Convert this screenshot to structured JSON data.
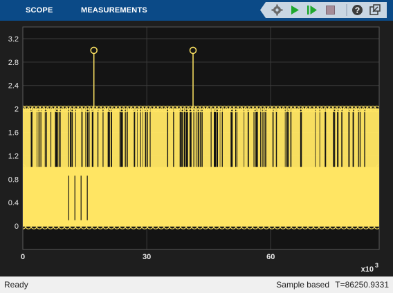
{
  "toolstrip": {
    "tabs": [
      {
        "label": "SCOPE"
      },
      {
        "label": "MEASUREMENTS"
      }
    ],
    "buttons": [
      {
        "icon": "settings-gear-icon"
      },
      {
        "icon": "run-play-icon"
      },
      {
        "icon": "step-forward-icon"
      },
      {
        "icon": "stop-icon"
      },
      {
        "icon": "help-icon"
      },
      {
        "icon": "undock-icon"
      }
    ]
  },
  "colors": {
    "toolstrip_bg": "#0b4a87",
    "plot_bg": "#1e1e1e",
    "axes_bg": "#141414",
    "grid": "#3c3c3c",
    "signal": "#ffe563",
    "tick_text": "#e8e8e8"
  },
  "chart_data": {
    "type": "stem",
    "title": "",
    "xlabel": "",
    "ylabel": "",
    "x_multiplier_label": "x10",
    "x_multiplier_exponent": "3",
    "xlim": [
      0,
      86.25
    ],
    "ylim": [
      -0.4,
      3.4
    ],
    "xticks": [
      0,
      30,
      60
    ],
    "yticks": [
      0,
      0.4,
      0.8,
      1.2,
      1.6,
      2,
      2.4,
      2.8,
      3.2
    ],
    "ytick_labels": [
      "0",
      "0.4",
      "0.8",
      "1.2",
      "1.6",
      "2",
      "2.4",
      "2.8",
      "3.2"
    ],
    "grid": true,
    "legend": "none",
    "levels": [
      0,
      1,
      2,
      3
    ],
    "peaks": [
      {
        "x": 17.2,
        "y": 3
      },
      {
        "x": 41.2,
        "y": 3
      }
    ],
    "series": [
      {
        "values_description_levels": [
          0,
          1,
          2,
          3
        ]
      }
    ]
  },
  "status": {
    "left": "Ready",
    "mode": "Sample based",
    "time": "T=86250.9331"
  }
}
